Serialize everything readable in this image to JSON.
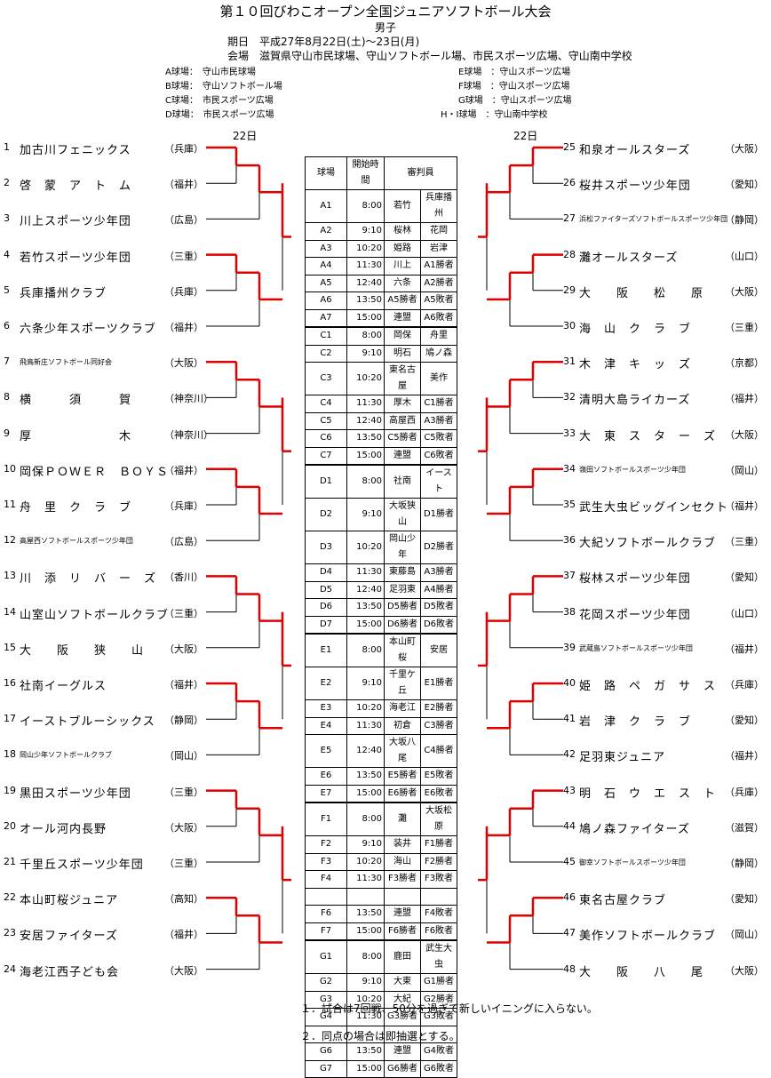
{
  "header": {
    "title": "第１０回びわこオープン全国ジュニアソフトボール大会",
    "subtitle": "男子",
    "dates": "期日　平成27年8月22日(土)～23日(月)",
    "venue": "会場　滋賀県守山市民球場、守山ソフトボール場、市民スポーツ広場、守山南中学校"
  },
  "fields_left": [
    "A球場：　守山市民球場",
    "B球場：　守山ソフトボール場",
    "C球場：　市民スポーツ広場",
    "D球場：　市民スポーツ広場"
  ],
  "fields_right": [
    "E球場　：守山スポーツ広場",
    "F球場　：守山スポーツ広場",
    "G球場　：守山スポーツ広場",
    "H・I球場　：守山南中学校"
  ],
  "day_left": "22日",
  "day_right": "22日",
  "teams_left": [
    {
      "num": "1",
      "name": "加古川フェニックス",
      "pref": "（兵庫）"
    },
    {
      "num": "2",
      "name": "啓　蒙　ア　ト　ム",
      "pref": "（福井）"
    },
    {
      "num": "3",
      "name": "川上スポーツ少年団",
      "pref": "（広島）"
    },
    {
      "num": "4",
      "name": "若竹スポーツ少年団",
      "pref": "（三重）"
    },
    {
      "num": "5",
      "name": "兵庫播州クラブ",
      "pref": "（兵庫）"
    },
    {
      "num": "6",
      "name": "六条少年スポーツクラブ",
      "pref": "（福井）"
    },
    {
      "num": "7",
      "name": "飛鳥新庄ソフトボール同好会",
      "pref": "（大阪）",
      "small": true
    },
    {
      "num": "8",
      "name": "横　　　須　　　賀",
      "pref": "（神奈川）"
    },
    {
      "num": "9",
      "name": "厚　　　　　　　木",
      "pref": "（神奈川）"
    },
    {
      "num": "10",
      "name": "岡保ＰＯＷＥＲ　ＢＯＹＳ",
      "pref": "（福井）"
    },
    {
      "num": "11",
      "name": "舟　里　ク　ラ　ブ",
      "pref": "（兵庫）"
    },
    {
      "num": "12",
      "name": "高屋西ソフトボールスポーツ少年団",
      "pref": "（広島）",
      "small": true
    },
    {
      "num": "13",
      "name": "川　添　リ　バ　ー　ズ",
      "pref": "（香川）"
    },
    {
      "num": "14",
      "name": "山室山ソフトボールクラブ",
      "pref": "（三重）"
    },
    {
      "num": "15",
      "name": "大　　阪　　狭　　山",
      "pref": "（大阪）"
    },
    {
      "num": "16",
      "name": "社南イーグルス",
      "pref": "（福井）"
    },
    {
      "num": "17",
      "name": "イーストブルーシックス",
      "pref": "（静岡）"
    },
    {
      "num": "18",
      "name": "岡山少年ソフトボールクラブ",
      "pref": "（岡山）",
      "small": true
    },
    {
      "num": "19",
      "name": "黒田スポーツ少年団",
      "pref": "（三重）"
    },
    {
      "num": "20",
      "name": "オール河内長野",
      "pref": "（大阪）"
    },
    {
      "num": "21",
      "name": "千里丘スポーツ少年団",
      "pref": "（三重）"
    },
    {
      "num": "22",
      "name": "本山町桜ジュニア",
      "pref": "（高知）"
    },
    {
      "num": "23",
      "name": "安居ファイターズ",
      "pref": "（福井）"
    },
    {
      "num": "24",
      "name": "海老江西子ども会",
      "pref": "（大阪）"
    }
  ],
  "teams_right": [
    {
      "num": "25",
      "name": "和泉オールスターズ",
      "pref": "（大阪）"
    },
    {
      "num": "26",
      "name": "桜井スポーツ少年団",
      "pref": "（愛知）"
    },
    {
      "num": "27",
      "name": "浜松ファイターズソフトボールスポーツ少年団",
      "pref": "（静岡）",
      "small": true
    },
    {
      "num": "28",
      "name": "灘オールスターズ",
      "pref": "（山口）"
    },
    {
      "num": "29",
      "name": "大　　阪　　松　　原",
      "pref": "（大阪）"
    },
    {
      "num": "30",
      "name": "海　山　ク　ラ　ブ",
      "pref": "（三重）"
    },
    {
      "num": "31",
      "name": "木　津　キ　ッ　ズ",
      "pref": "（京都）"
    },
    {
      "num": "32",
      "name": "清明大島ライカーズ",
      "pref": "（福井）"
    },
    {
      "num": "33",
      "name": "大　東　ス　タ　ー　ズ",
      "pref": "（大阪）"
    },
    {
      "num": "34",
      "name": "嶺田ソフトボールスポーツ少年団",
      "pref": "（岡山）",
      "small": true
    },
    {
      "num": "35",
      "name": "武生大虫ビッグインセクト",
      "pref": "（福井）"
    },
    {
      "num": "36",
      "name": "大紀ソフトボールクラブ",
      "pref": "（三重）"
    },
    {
      "num": "37",
      "name": "桜林スポーツ少年団",
      "pref": "（愛知）"
    },
    {
      "num": "38",
      "name": "花岡スポーツ少年団",
      "pref": "（山口）"
    },
    {
      "num": "39",
      "name": "武蔵島ソフトボールスポーツ少年団",
      "pref": "（福井）",
      "small": true
    },
    {
      "num": "40",
      "name": "姫　路　ペ　ガ　サ　ス",
      "pref": "（兵庫）"
    },
    {
      "num": "41",
      "name": "岩　津　ク　ラ　ブ",
      "pref": "（愛知）"
    },
    {
      "num": "42",
      "name": "足羽東ジュニア",
      "pref": "（福井）"
    },
    {
      "num": "43",
      "name": "明　石　ウ　エ　ス　ト",
      "pref": "（兵庫）"
    },
    {
      "num": "44",
      "name": "鳩ノ森ファイターズ",
      "pref": "（滋賀）"
    },
    {
      "num": "45",
      "name": "御幸ソフトボールスポーツ少年団",
      "pref": "（静岡）",
      "small": true
    },
    {
      "num": "46",
      "name": "東名古屋クラブ",
      "pref": "（愛知）"
    },
    {
      "num": "47",
      "name": "美作ソフトボールクラブ",
      "pref": "（岡山）"
    },
    {
      "num": "48",
      "name": "大　　阪　　八　　尾",
      "pref": "（大阪）"
    }
  ],
  "schedule": {
    "headers": [
      "球場",
      "開始時間",
      "審判員"
    ],
    "rows": [
      [
        "A1",
        "8:00",
        "若竹",
        "兵庫播州"
      ],
      [
        "A2",
        "9:10",
        "桜林",
        "花岡"
      ],
      [
        "A3",
        "10:20",
        "姫路",
        "岩津"
      ],
      [
        "A4",
        "11:30",
        "川上",
        "A1勝者"
      ],
      [
        "A5",
        "12:40",
        "六条",
        "A2勝者"
      ],
      [
        "A6",
        "13:50",
        "A5勝者",
        "A5敗者"
      ],
      [
        "A7",
        "15:00",
        "連盟",
        "A6敗者"
      ],
      [
        "C1",
        "8:00",
        "岡保",
        "舟里"
      ],
      [
        "C2",
        "9:10",
        "明石",
        "鳩ノ森"
      ],
      [
        "C3",
        "10:20",
        "東名古屋",
        "美作"
      ],
      [
        "C4",
        "11:30",
        "厚木",
        "C1勝者"
      ],
      [
        "C5",
        "12:40",
        "高屋西",
        "A3勝者"
      ],
      [
        "C6",
        "13:50",
        "C5勝者",
        "C5敗者"
      ],
      [
        "C7",
        "15:00",
        "連盟",
        "C6敗者"
      ],
      [
        "D1",
        "8:00",
        "社南",
        "イースト"
      ],
      [
        "D2",
        "9:10",
        "大坂狭山",
        "D1勝者"
      ],
      [
        "D3",
        "10:20",
        "岡山少年",
        "D2勝者"
      ],
      [
        "D4",
        "11:30",
        "東藤島",
        "A3勝者"
      ],
      [
        "D5",
        "12:40",
        "足羽東",
        "A4勝者"
      ],
      [
        "D6",
        "13:50",
        "D5勝者",
        "D5敗者"
      ],
      [
        "D7",
        "15:00",
        "D6勝者",
        "D6敗者"
      ],
      [
        "E1",
        "8:00",
        "本山町桜",
        "安居"
      ],
      [
        "E2",
        "9:10",
        "千里ケ丘",
        "E1勝者"
      ],
      [
        "E3",
        "10:20",
        "海老江",
        "E2勝者"
      ],
      [
        "E4",
        "11:30",
        "初倉",
        "C3勝者"
      ],
      [
        "E5",
        "12:40",
        "大坂八尾",
        "C4勝者"
      ],
      [
        "E6",
        "13:50",
        "E5勝者",
        "E5敗者"
      ],
      [
        "E7",
        "15:00",
        "E6勝者",
        "E6敗者"
      ],
      [
        "F1",
        "8:00",
        "灘",
        "大坂松原"
      ],
      [
        "F2",
        "9:10",
        "装井",
        "F1勝者"
      ],
      [
        "F3",
        "10:20",
        "海山",
        "F2勝者"
      ],
      [
        "F4",
        "11:30",
        "F3勝者",
        "F3敗者"
      ],
      [
        "",
        "",
        "",
        ""
      ],
      [
        "F6",
        "13:50",
        "連盟",
        "F4敗者"
      ],
      [
        "F7",
        "15:00",
        "F6勝者",
        "F6敗者"
      ],
      [
        "G1",
        "8:00",
        "鹿田",
        "武生大虫"
      ],
      [
        "G2",
        "9:10",
        "大東",
        "G1勝者"
      ],
      [
        "G3",
        "10:20",
        "大紀",
        "G2勝者"
      ],
      [
        "G4",
        "11:30",
        "G3勝者",
        "G3敗者"
      ],
      [
        "",
        "",
        "",
        ""
      ],
      [
        "G6",
        "13:50",
        "連盟",
        "G4敗者"
      ],
      [
        "G7",
        "15:00",
        "G6勝者",
        "G6敗者"
      ]
    ]
  },
  "notes": [
    "１．試合は7回戦、50分を過ぎて新しいイニングに入らない。",
    "２．同点の場合は即抽選とする。"
  ],
  "colors": {
    "accent": "#e00000"
  }
}
